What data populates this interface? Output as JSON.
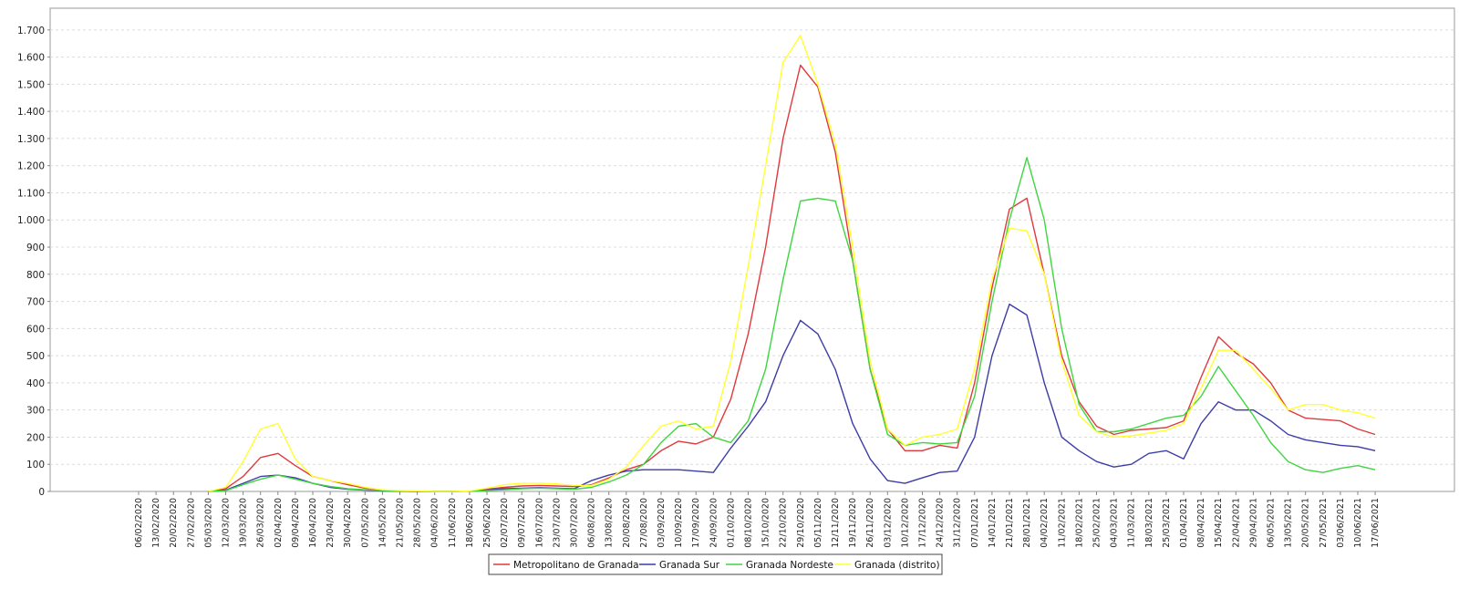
{
  "chart_data": {
    "type": "line",
    "title": "",
    "xlabel": "",
    "ylabel": "",
    "ylim": [
      0,
      1780
    ],
    "yticks": [
      0,
      100,
      200,
      300,
      400,
      500,
      600,
      700,
      800,
      900,
      1000,
      1100,
      1200,
      1300,
      1400,
      1500,
      1600,
      1700
    ],
    "ytick_labels": [
      "0",
      "100",
      "200",
      "300",
      "400",
      "500",
      "600",
      "700",
      "800",
      "900",
      "1.000",
      "1.100",
      "1.200",
      "1.300",
      "1.400",
      "1.500",
      "1.600",
      "1.700"
    ],
    "categories": [
      "06/02/2020",
      "13/02/2020",
      "20/02/2020",
      "27/02/2020",
      "05/03/2020",
      "12/03/2020",
      "19/03/2020",
      "26/03/2020",
      "02/04/2020",
      "09/04/2020",
      "16/04/2020",
      "23/04/2020",
      "30/04/2020",
      "07/05/2020",
      "14/05/2020",
      "21/05/2020",
      "28/05/2020",
      "04/06/2020",
      "11/06/2020",
      "18/06/2020",
      "25/06/2020",
      "02/07/2020",
      "09/07/2020",
      "16/07/2020",
      "23/07/2020",
      "30/07/2020",
      "06/08/2020",
      "13/08/2020",
      "20/08/2020",
      "27/08/2020",
      "03/09/2020",
      "10/09/2020",
      "17/09/2020",
      "24/09/2020",
      "01/10/2020",
      "08/10/2020",
      "15/10/2020",
      "22/10/2020",
      "29/10/2020",
      "05/11/2020",
      "12/11/2020",
      "19/11/2020",
      "26/11/2020",
      "03/12/2020",
      "10/12/2020",
      "17/12/2020",
      "24/12/2020",
      "31/12/2020",
      "07/01/2021",
      "14/01/2021",
      "21/01/2021",
      "28/01/2021",
      "04/02/2021",
      "11/02/2021",
      "18/02/2021",
      "25/02/2021",
      "04/03/2021",
      "11/03/2021",
      "18/03/2021",
      "25/03/2021",
      "01/04/2021",
      "08/04/2021",
      "15/04/2021",
      "22/04/2021",
      "29/04/2021",
      "06/05/2021",
      "13/05/2021",
      "20/05/2021",
      "27/05/2021",
      "03/06/2021",
      "10/06/2021",
      "17/06/2021"
    ],
    "grid": true,
    "legend_position": "bottom",
    "series": [
      {
        "name": "Metropolitano de Granada",
        "color": "#e0393c",
        "values": [
          null,
          null,
          null,
          null,
          0,
          10,
          55,
          125,
          140,
          95,
          55,
          40,
          25,
          12,
          5,
          2,
          1,
          0,
          0,
          1,
          8,
          15,
          20,
          22,
          20,
          18,
          25,
          50,
          80,
          100,
          150,
          185,
          175,
          200,
          340,
          580,
          900,
          1300,
          1570,
          1490,
          1250,
          850,
          450,
          230,
          150,
          150,
          170,
          160,
          400,
          750,
          1040,
          1080,
          800,
          500,
          330,
          240,
          210,
          225,
          230,
          235,
          260,
          420,
          570,
          510,
          470,
          400,
          300,
          270,
          265,
          260,
          230,
          210
        ]
      },
      {
        "name": "Granada Sur",
        "color": "#3c3ca8",
        "values": [
          null,
          null,
          null,
          null,
          0,
          5,
          30,
          55,
          60,
          50,
          30,
          15,
          8,
          5,
          2,
          1,
          0,
          0,
          0,
          1,
          5,
          10,
          12,
          14,
          12,
          10,
          40,
          60,
          75,
          80,
          80,
          80,
          75,
          70,
          160,
          240,
          330,
          500,
          630,
          580,
          450,
          250,
          120,
          40,
          30,
          50,
          70,
          75,
          200,
          500,
          690,
          650,
          400,
          200,
          150,
          110,
          90,
          100,
          140,
          150,
          120,
          250,
          330,
          300,
          300,
          260,
          210,
          190,
          180,
          170,
          165,
          150
        ]
      },
      {
        "name": "Granada Nordeste",
        "color": "#3ed63e",
        "values": [
          null,
          null,
          null,
          null,
          0,
          3,
          25,
          45,
          60,
          45,
          30,
          18,
          10,
          6,
          3,
          2,
          1,
          0,
          0,
          1,
          3,
          6,
          10,
          12,
          10,
          8,
          15,
          35,
          60,
          100,
          180,
          240,
          250,
          200,
          180,
          260,
          450,
          780,
          1070,
          1080,
          1070,
          850,
          450,
          210,
          170,
          180,
          175,
          180,
          350,
          700,
          1000,
          1230,
          1000,
          600,
          320,
          220,
          220,
          230,
          250,
          270,
          280,
          350,
          460,
          370,
          280,
          180,
          110,
          80,
          70,
          85,
          95,
          80
        ]
      },
      {
        "name": "Granada (distrito)",
        "color": "#ffff33",
        "values": [
          null,
          null,
          null,
          null,
          0,
          15,
          110,
          230,
          250,
          120,
          55,
          40,
          30,
          15,
          6,
          3,
          2,
          0,
          0,
          2,
          12,
          25,
          30,
          30,
          28,
          22,
          22,
          45,
          90,
          170,
          240,
          260,
          230,
          240,
          480,
          830,
          1200,
          1580,
          1680,
          1500,
          1280,
          900,
          480,
          230,
          170,
          200,
          210,
          230,
          450,
          780,
          970,
          960,
          800,
          480,
          280,
          220,
          200,
          205,
          215,
          225,
          250,
          380,
          520,
          520,
          450,
          380,
          300,
          320,
          320,
          300,
          290,
          270
        ]
      }
    ]
  }
}
